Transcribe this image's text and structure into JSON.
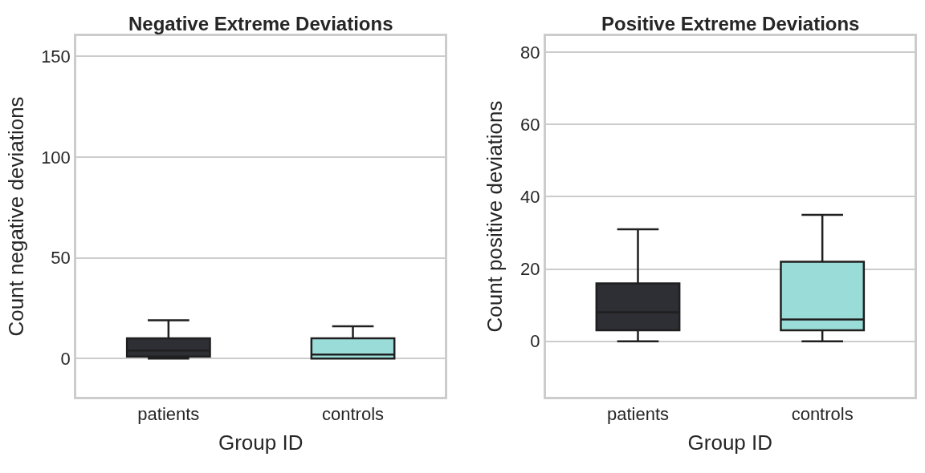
{
  "chart_data": [
    {
      "type": "box",
      "title": "Negative Extreme Deviations",
      "xlabel": "Group ID",
      "ylabel": "Count negative deviations",
      "categories": [
        "patients",
        "controls"
      ],
      "colors": [
        "#2e2f35",
        "#9adcd8"
      ],
      "boxes": [
        {
          "low": 0,
          "q1": 1,
          "median": 4,
          "q3": 10,
          "high": 19
        },
        {
          "low": 0,
          "q1": 0,
          "median": 2,
          "q3": 10,
          "high": 16
        }
      ],
      "ylim": [
        -19,
        160
      ],
      "yticks": [
        0,
        50,
        100,
        150
      ],
      "grid": "y"
    },
    {
      "type": "box",
      "title": "Positive Extreme Deviations",
      "xlabel": "Group ID",
      "ylabel": "Count positive deviations",
      "categories": [
        "patients",
        "controls"
      ],
      "colors": [
        "#2e2f35",
        "#9adcd8"
      ],
      "boxes": [
        {
          "low": 0,
          "q1": 3,
          "median": 8,
          "q3": 16,
          "high": 31
        },
        {
          "low": 0,
          "q1": 3,
          "median": 6,
          "q3": 22,
          "high": 35
        }
      ],
      "ylim": [
        -15.4,
        84.5
      ],
      "yticks": [
        0,
        20,
        40,
        60,
        80
      ],
      "grid": "y"
    }
  ]
}
